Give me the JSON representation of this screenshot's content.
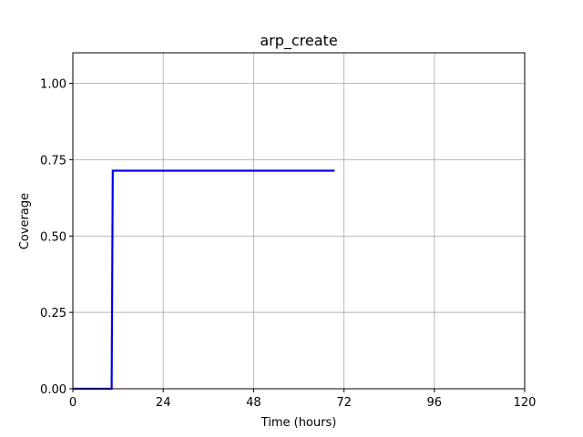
{
  "chart_data": {
    "type": "line",
    "title": "arp_create",
    "xlabel": "Time (hours)",
    "ylabel": "Coverage",
    "xlim": [
      0,
      120
    ],
    "ylim": [
      0,
      1.1
    ],
    "xticks": [
      0,
      24,
      48,
      72,
      96,
      120
    ],
    "xtick_labels": [
      "0",
      "24",
      "48",
      "72",
      "96",
      "120"
    ],
    "yticks": [
      0,
      0.25,
      0.5,
      0.75,
      1.0
    ],
    "ytick_labels": [
      "0.00",
      "0.25",
      "0.50",
      "0.75",
      "1.00"
    ],
    "grid": true,
    "series": [
      {
        "color": "#0000ee",
        "x": [
          0,
          10.3,
          10.6,
          69.5
        ],
        "y": [
          0,
          0,
          0.714,
          0.714
        ]
      }
    ]
  }
}
